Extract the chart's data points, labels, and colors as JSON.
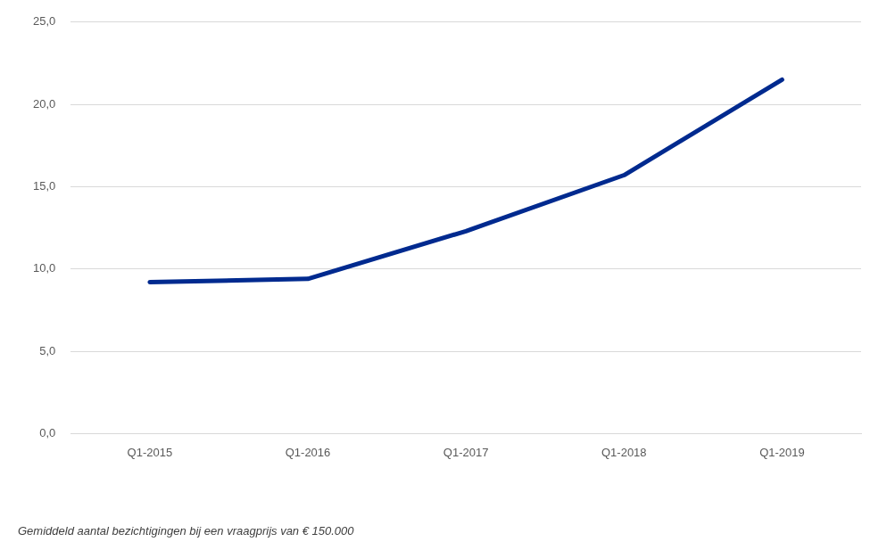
{
  "chart_data": {
    "type": "line",
    "categories": [
      "Q1-2015",
      "Q1-2016",
      "Q1-2017",
      "Q1-2018",
      "Q1-2019"
    ],
    "series": [
      {
        "color": "#002a8f",
        "values": [
          9.2,
          9.4,
          12.3,
          15.7,
          21.5
        ]
      }
    ],
    "ylim": [
      0,
      25
    ],
    "yticks": [
      {
        "value": 0,
        "label": "0,0"
      },
      {
        "value": 5,
        "label": "5,0"
      },
      {
        "value": 10,
        "label": "10,0"
      },
      {
        "value": 15,
        "label": "15,0"
      },
      {
        "value": 20,
        "label": "20,0"
      },
      {
        "value": 25,
        "label": "25,0"
      }
    ],
    "grid": "y",
    "legend": false,
    "marker": "none",
    "line_style": "solid",
    "annotations": [
      "Gemiddeld aantal bezichtigingen bij een vraagprijs van € 150.000"
    ]
  }
}
